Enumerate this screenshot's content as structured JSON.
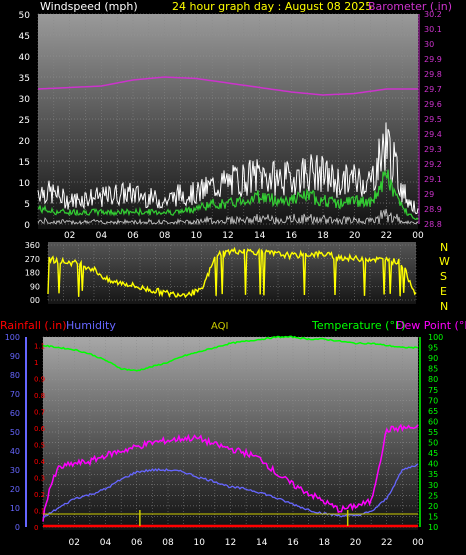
{
  "header": {
    "windspeed_label": "Windspeed (mph)",
    "title": "24 hour graph day : August 08 2025",
    "barometer_label": "Barometer (.in)"
  },
  "compass": [
    "N",
    "W",
    "S",
    "E",
    "N"
  ],
  "lower_header": {
    "rainfall_label": "Rainfall (.in)",
    "humidity_label": "Humidity",
    "aqi_label": "AQI",
    "temperature_label": "Temperature (°F)",
    "dewpoint_label": "Dew Point (°F)"
  },
  "colors": {
    "wind_gust": "#ffffff",
    "wind_avg": "#33cc33",
    "barometer": "#cc33cc",
    "direction": "#ffff00",
    "temperature": "#00ff00",
    "dewpoint": "#ff00ff",
    "humidity": "#6666ff",
    "rainfall": "#ff0000",
    "aqi": "#cccc00"
  },
  "chart_data": [
    {
      "type": "line",
      "x_ticks": [
        "02",
        "04",
        "06",
        "08",
        "10",
        "12",
        "14",
        "16",
        "18",
        "20",
        "22",
        "00"
      ],
      "ylim_left": [
        0,
        50
      ],
      "ylabel_left_ticks": [
        0,
        5,
        10,
        15,
        20,
        25,
        30,
        35,
        40,
        45,
        50
      ],
      "ylim_right": [
        28.8,
        30.2
      ],
      "ylabel_right_ticks": [
        28.8,
        28.9,
        29.0,
        29.1,
        29.2,
        29.3,
        29.4,
        29.5,
        29.6,
        29.7,
        29.8,
        29.9,
        30.0,
        30.1,
        30.2
      ],
      "ylabel_right_text": [
        "28.8",
        "28.9",
        "29",
        "29.1",
        "29.2",
        "29.3",
        "29.4",
        "29.5",
        "29.6",
        "29.7",
        "29.8",
        "29.9",
        "30",
        "30.1",
        "30.2"
      ],
      "series": [
        {
          "name": "gust",
          "x": [
            0,
            1,
            2,
            3,
            4,
            5,
            6,
            7,
            8,
            9,
            10,
            11,
            12,
            13,
            14,
            15,
            16,
            17,
            18,
            19,
            20,
            21,
            22,
            23,
            24
          ],
          "values": [
            9,
            8,
            6,
            7,
            7,
            8,
            8,
            7,
            6,
            8,
            8,
            10,
            11,
            12,
            13,
            12,
            12,
            14,
            13,
            11,
            12,
            11,
            22,
            9,
            3
          ]
        },
        {
          "name": "average",
          "x": [
            0,
            1,
            2,
            3,
            4,
            5,
            6,
            7,
            8,
            9,
            10,
            11,
            12,
            13,
            14,
            15,
            16,
            17,
            18,
            19,
            20,
            21,
            22,
            23,
            24
          ],
          "values": [
            4,
            3,
            3,
            3,
            3,
            3,
            3,
            3,
            3,
            3,
            4,
            5,
            5,
            6,
            7,
            6,
            6,
            7,
            6,
            5,
            6,
            5,
            12,
            4,
            1
          ]
        },
        {
          "name": "barometer",
          "x": [
            0,
            2,
            4,
            6,
            8,
            10,
            12,
            14,
            16,
            18,
            20,
            22,
            24
          ],
          "values": [
            29.7,
            29.71,
            29.72,
            29.76,
            29.78,
            29.77,
            29.74,
            29.71,
            29.68,
            29.66,
            29.67,
            29.7,
            29.7
          ]
        }
      ]
    },
    {
      "type": "scatter",
      "ylim": [
        0,
        360
      ],
      "yticks": [
        0,
        90,
        180,
        270,
        360
      ],
      "ytick_labels": [
        "00",
        "90",
        "180",
        "270",
        "360"
      ],
      "x": [
        0,
        1,
        2,
        3,
        4,
        5,
        6,
        7,
        8,
        9,
        10,
        11,
        12,
        13,
        14,
        15,
        16,
        17,
        18,
        19,
        20,
        21,
        22,
        23,
        24
      ],
      "values": [
        270,
        250,
        240,
        200,
        120,
        110,
        80,
        60,
        40,
        40,
        60,
        300,
        320,
        320,
        310,
        300,
        290,
        300,
        300,
        280,
        270,
        270,
        260,
        250,
        40
      ]
    },
    {
      "type": "line",
      "x_ticks": [
        "02",
        "04",
        "06",
        "08",
        "10",
        "12",
        "14",
        "16",
        "18",
        "20",
        "22",
        "00"
      ],
      "rain_ticks": [
        0,
        0.1,
        0.2,
        0.3,
        0.4,
        0.5,
        0.6,
        0.7,
        0.8,
        0.9,
        1,
        1.1
      ],
      "rain_tick_labels": [
        "0",
        "0.1",
        "0.2",
        "0.3",
        "0.4",
        "0.5",
        "0.6",
        "0.7",
        "0.8",
        "0.9",
        "1",
        "1.1"
      ],
      "humidity_ticks": [
        0,
        10,
        20,
        30,
        40,
        50,
        60,
        70,
        80,
        90,
        100
      ],
      "temp_ticks": [
        10,
        15,
        20,
        25,
        30,
        35,
        40,
        45,
        50,
        55,
        60,
        65,
        70,
        75,
        80,
        85,
        90,
        95,
        100
      ],
      "series": [
        {
          "name": "temperature",
          "x": [
            0,
            1,
            2,
            3,
            4,
            5,
            6,
            7,
            8,
            9,
            10,
            11,
            12,
            13,
            14,
            15,
            16,
            17,
            18,
            19,
            20,
            21,
            22,
            23,
            24
          ],
          "values": [
            96,
            95,
            94,
            92,
            89,
            85,
            84,
            86,
            88,
            91,
            93,
            95,
            97,
            98,
            99,
            100,
            100,
            99,
            99,
            98,
            97,
            97,
            96,
            95,
            95
          ]
        },
        {
          "name": "dewpoint",
          "x": [
            0,
            0.4,
            1,
            2,
            3,
            4,
            5,
            6,
            7,
            8,
            9,
            10,
            11,
            12,
            13,
            14,
            15,
            16,
            17,
            18,
            19,
            20,
            21,
            22,
            23,
            24
          ],
          "values": [
            14,
            28,
            38,
            40,
            41,
            44,
            46,
            48,
            50,
            51,
            52,
            52,
            49,
            47,
            45,
            42,
            35,
            30,
            26,
            22,
            18,
            20,
            22,
            56,
            57,
            57
          ]
        },
        {
          "name": "humidity",
          "x": [
            0,
            1,
            2,
            3,
            4,
            5,
            6,
            7,
            8,
            9,
            10,
            11,
            12,
            13,
            14,
            15,
            16,
            17,
            18,
            19,
            20,
            21,
            22,
            23,
            24
          ],
          "values": [
            5,
            10,
            15,
            17,
            20,
            25,
            29,
            30,
            30,
            29,
            26,
            24,
            21,
            20,
            18,
            15,
            12,
            9,
            7,
            6,
            6,
            8,
            15,
            30,
            33
          ]
        },
        {
          "name": "rainfall",
          "x": [
            0,
            24
          ],
          "values": [
            0,
            0
          ]
        },
        {
          "name": "aqi",
          "x": [
            0,
            24
          ],
          "values": [
            0,
            0
          ]
        }
      ]
    }
  ]
}
